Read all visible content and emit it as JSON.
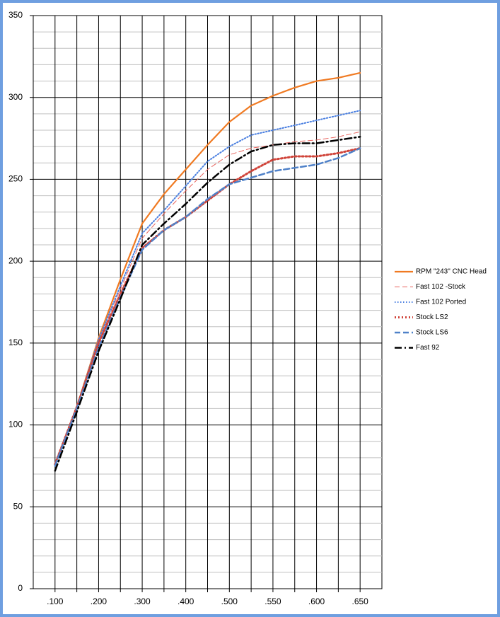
{
  "chart_data": {
    "type": "line",
    "categories": [
      ".100",
      null,
      ".200",
      null,
      ".300",
      null,
      ".400",
      null,
      ".500",
      null,
      ".550",
      null,
      ".600",
      null,
      ".650"
    ],
    "ylim": [
      0,
      350
    ],
    "yticks": [
      0,
      50,
      100,
      150,
      200,
      250,
      300,
      350
    ],
    "minor_yticks": [
      10,
      20,
      30,
      40,
      60,
      70,
      80,
      90,
      110,
      120,
      130,
      140,
      160,
      170,
      180,
      190,
      210,
      220,
      230,
      240,
      260,
      270,
      280,
      290,
      310,
      320,
      330,
      340
    ],
    "grid": true,
    "legend": "right",
    "series": [
      {
        "name": "RPM \"243\" CNC Head",
        "color": "#f07a22",
        "dash": "solid",
        "values": [
          76,
          111,
          153,
          189,
          223,
          241,
          256,
          271,
          285,
          295,
          301,
          306,
          310,
          312,
          315
        ]
      },
      {
        "name": "Fast 102 -Stock",
        "color": "#e8625c",
        "dash": "dashed",
        "values": [
          76,
          111,
          151,
          183,
          214,
          229,
          243,
          256,
          265,
          269,
          271,
          273,
          274,
          276,
          279
        ]
      },
      {
        "name": "Fast 102 Ported",
        "color": "#4a7fe0",
        "dash": "dotted",
        "values": [
          76,
          111,
          152,
          185,
          217,
          231,
          246,
          261,
          270,
          277,
          280,
          283,
          286,
          289,
          292
        ]
      },
      {
        "name": "Stock LS2",
        "color": "#d0443a",
        "dash": "dotted-bold",
        "values": [
          76,
          111,
          150,
          180,
          208,
          219,
          227,
          237,
          247,
          255,
          262,
          264,
          264,
          266,
          269
        ]
      },
      {
        "name": "Stock LS6",
        "color": "#4f81c8",
        "dash": "dashed-bold",
        "values": [
          75,
          110,
          147,
          178,
          207,
          219,
          227,
          238,
          247,
          251,
          255,
          257,
          259,
          263,
          269
        ]
      },
      {
        "name": "Fast 92",
        "color": "#000000",
        "dash": "dashdot",
        "values": [
          72,
          108,
          145,
          177,
          210,
          223,
          235,
          248,
          259,
          267,
          271,
          272,
          272,
          274,
          276
        ]
      }
    ]
  }
}
